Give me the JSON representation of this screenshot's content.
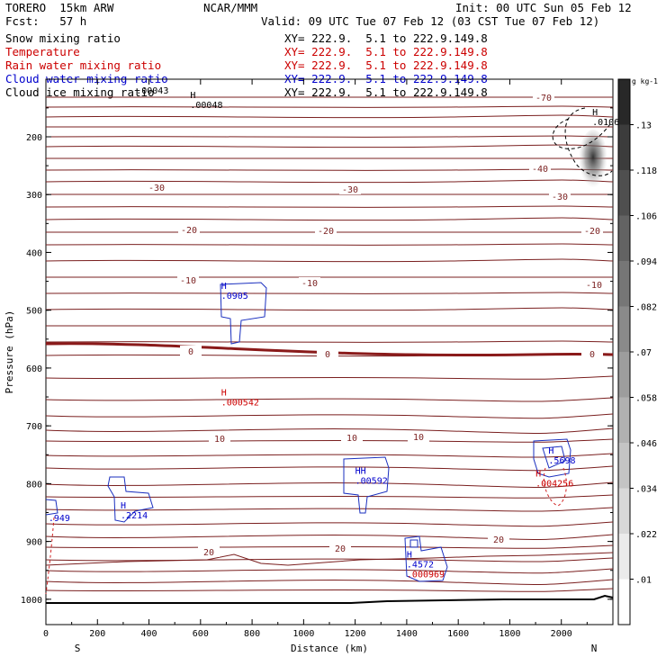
{
  "header": {
    "model": "TORERO  15km ARW",
    "center": "NCAR/MMM",
    "init": "Init: 00 UTC Sun 05 Feb 12",
    "fcst": "Fcst:   57 h",
    "valid": "Valid: 09 UTC Tue 07 Feb 12 (03 CST Tue 07 Feb 12)"
  },
  "fields": [
    {
      "name": "Snow mixing ratio",
      "xy": "",
      "color": "#000000"
    },
    {
      "name": "Temperature",
      "xy": "XY= 222.9.  5.1 to 222.9.149.8",
      "color": "#cc0000"
    },
    {
      "name": "Rain water mixing ratio",
      "xy": "XY= 222.9.  5.1 to 222.9.149.8",
      "color": "#cc0000"
    },
    {
      "name": "Cloud water mixing ratio",
      "xy": "XY= 222.9.  5.1 to 222.9.149.8",
      "color": "#0000cc"
    },
    {
      "name": "Cloud ice mixing ratio",
      "xy": "XY= 222.9.  5.1 to 222.9.149.8",
      "color": "#000000"
    }
  ],
  "field0_xy": "XY= 222.9.  5.1 to 222.9.149.8",
  "chart_data": {
    "type": "contour",
    "xlabel": "Distance (km)",
    "ylabel": "Pressure (hPa)",
    "xlim": [
      0,
      2200
    ],
    "ylim": [
      1050,
      100
    ],
    "xticks": [
      0,
      200,
      400,
      600,
      800,
      1000,
      1200,
      1400,
      1600,
      1800,
      2000
    ],
    "yticks": [
      200,
      300,
      400,
      500,
      600,
      700,
      800,
      900,
      1000
    ],
    "x_end_labels": {
      "left": "S",
      "right": "N"
    },
    "colorbar": {
      "unit": "g kg-1",
      "ticks": [
        ".13",
        ".118",
        ".106",
        ".094",
        ".082",
        ".07",
        ".058",
        ".046",
        ".034",
        ".022",
        ".01"
      ]
    },
    "temperature_contours": [
      {
        "level": -70,
        "label": "-70"
      },
      {
        "level": -40,
        "label": "-40"
      },
      {
        "level": -30,
        "label": "-30"
      },
      {
        "level": -20,
        "label": "-20"
      },
      {
        "level": -10,
        "label": "-10"
      },
      {
        "level": 0,
        "label": "0"
      },
      {
        "level": 10,
        "label": "10"
      },
      {
        "level": 20,
        "label": "20"
      }
    ],
    "annotations": [
      {
        "mark": "H",
        "value": ".00048",
        "x": 560,
        "p": 150,
        "color": "#000000"
      },
      {
        "mark": "",
        "value": ".00043",
        "x": 350,
        "p": 125,
        "color": "#000000"
      },
      {
        "mark": "H",
        "value": ".0106",
        "x": 2120,
        "p": 180,
        "color": "#000000"
      },
      {
        "mark": "H",
        "value": ".0905",
        "x": 680,
        "p": 480,
        "color": "#0000cc"
      },
      {
        "mark": "H",
        "value": ".000542",
        "x": 680,
        "p": 665,
        "color": "#cc0000"
      },
      {
        "mark": "H",
        "value": ".2214",
        "x": 290,
        "p": 860,
        "color": "#0000cc"
      },
      {
        "mark": "",
        "value": ".949",
        "x": 10,
        "p": 865,
        "color": "#0000cc"
      },
      {
        "mark": "HH",
        "value": ".00592",
        "x": 1200,
        "p": 800,
        "color": "#0000cc"
      },
      {
        "mark": "H",
        "value": ".5698",
        "x": 1950,
        "p": 765,
        "color": "#0000cc"
      },
      {
        "mark": "H",
        "value": ".004256",
        "x": 1900,
        "p": 805,
        "color": "#cc0000"
      },
      {
        "mark": "H",
        "value": ".4572",
        "x": 1400,
        "p": 945,
        "color": "#0000cc"
      },
      {
        "mark": "",
        "value": ".000969",
        "x": 1400,
        "p": 962,
        "color": "#cc0000"
      }
    ]
  }
}
